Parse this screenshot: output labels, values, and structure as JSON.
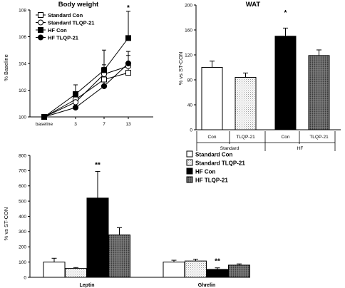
{
  "chart_data": [
    {
      "type": "line",
      "title": "Body weight",
      "ylabel": "% Baseline",
      "xlabel": "",
      "categories": [
        "baseline",
        "3",
        "7",
        "13"
      ],
      "ylim": [
        100,
        108
      ],
      "yticks": [
        100,
        102,
        104,
        106,
        108
      ],
      "series": [
        {
          "name": "Standard Con",
          "marker": "square-open",
          "values": [
            100,
            101.3,
            102.8,
            103.3
          ],
          "errors": [
            0,
            0.6,
            0.9,
            0.6
          ]
        },
        {
          "name": "Standard TLQP-21",
          "marker": "circle-open",
          "values": [
            100,
            101.1,
            103.2,
            103.8
          ],
          "errors": [
            0,
            0.5,
            0.7,
            0.8
          ]
        },
        {
          "name": "HF Con",
          "marker": "square-filled",
          "values": [
            100,
            101.7,
            103.5,
            105.9
          ],
          "errors": [
            0,
            0.7,
            1.5,
            2.0
          ]
        },
        {
          "name": "HF TLQP-21",
          "marker": "circle-filled",
          "values": [
            100,
            100.7,
            102.3,
            104.0
          ],
          "errors": [
            0,
            0.5,
            0.9,
            0.9
          ]
        }
      ],
      "annotations": [
        {
          "text": "*",
          "category": "13"
        }
      ],
      "grid": false,
      "legend": "top-left"
    },
    {
      "type": "bar",
      "title": "WAT",
      "ylabel": "% vs ST-CON",
      "xlabel": "",
      "categories": [
        "Con",
        "TLQP-21",
        "Con",
        "TLQP-21"
      ],
      "groups": [
        "Standard",
        "HF"
      ],
      "values": [
        100,
        84,
        150,
        119
      ],
      "errors": [
        10,
        7,
        13,
        9
      ],
      "fills": [
        "white",
        "dotted",
        "black",
        "hatched"
      ],
      "ylim": [
        0,
        200
      ],
      "yticks": [
        0,
        40,
        80,
        120,
        160,
        200
      ],
      "annotations": [
        {
          "text": "*",
          "index": 2
        }
      ],
      "grid": false
    },
    {
      "type": "bar",
      "title": "",
      "ylabel": "% vs ST-CON",
      "xlabel": "",
      "categories": [
        "Leptin",
        "Ghrelin"
      ],
      "ylim": [
        0,
        800
      ],
      "yticks": [
        0,
        100,
        200,
        300,
        400,
        500,
        600,
        700,
        800
      ],
      "series": [
        {
          "name": "Standard Con",
          "values": [
            100,
            100
          ],
          "errors": [
            25,
            12
          ],
          "fill": "white"
        },
        {
          "name": "Standard TLQP-21",
          "values": [
            58,
            107
          ],
          "errors": [
            6,
            12
          ],
          "fill": "dotted"
        },
        {
          "name": "HF Con",
          "values": [
            520,
            52
          ],
          "errors": [
            175,
            10
          ],
          "fill": "black"
        },
        {
          "name": "HF TLQP-21",
          "values": [
            278,
            80
          ],
          "errors": [
            48,
            8
          ],
          "fill": "hatched"
        }
      ],
      "annotations": [
        {
          "text": "**",
          "category": "Leptin",
          "series": "HF Con"
        },
        {
          "text": "**",
          "category": "Ghrelin",
          "series": "HF Con"
        }
      ],
      "grid": false,
      "legend": "top-right"
    }
  ]
}
